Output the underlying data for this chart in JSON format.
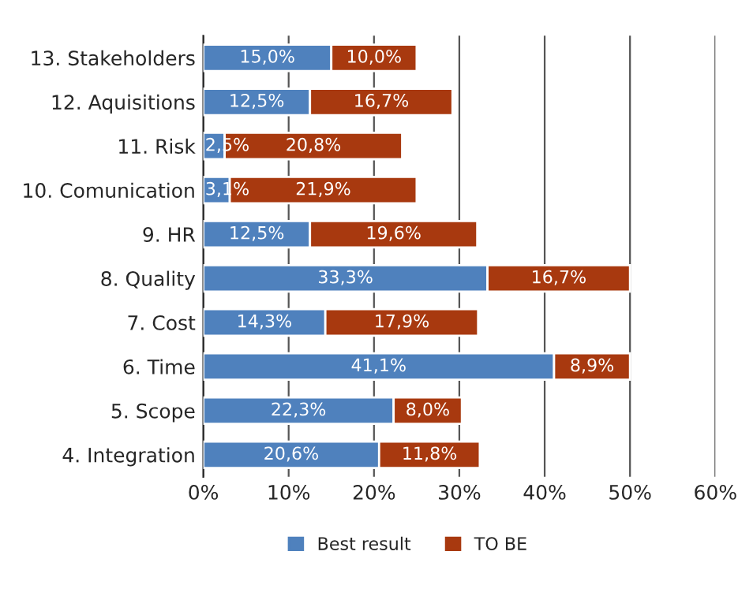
{
  "chart_data": {
    "type": "bar",
    "orientation": "horizontal",
    "stacked": true,
    "categories": [
      "13. Stakeholders",
      "12. Aquisitions",
      "11. Risk",
      "10. Comunication",
      "9. HR",
      "8. Quality",
      "7. Cost",
      "6. Time",
      "5. Scope",
      "4. Integration"
    ],
    "series": [
      {
        "name": "Best result",
        "color": "#4f81bd",
        "values": [
          15.0,
          12.5,
          2.5,
          3.1,
          12.5,
          33.3,
          14.3,
          41.1,
          22.3,
          20.6
        ],
        "value_labels": [
          "15,0%",
          "12,5%",
          "2,5%",
          "3,1%",
          "12,5%",
          "33,3%",
          "14,3%",
          "41,1%",
          "22,3%",
          "20,6%"
        ]
      },
      {
        "name": "TO BE",
        "color": "#a8390f",
        "values": [
          10.0,
          16.7,
          20.8,
          21.9,
          19.6,
          16.7,
          17.9,
          8.9,
          8.0,
          11.8
        ],
        "value_labels": [
          "10,0%",
          "16,7%",
          "20,8%",
          "21,9%",
          "19,6%",
          "16,7%",
          "17,9%",
          "8,9%",
          "8,0%",
          "11,8%"
        ]
      }
    ],
    "xlim": [
      0,
      60
    ],
    "xticks": [
      {
        "value": 0,
        "label": "0%"
      },
      {
        "value": 10,
        "label": "10%"
      },
      {
        "value": 20,
        "label": "20%"
      },
      {
        "value": 30,
        "label": "30%"
      },
      {
        "value": 40,
        "label": "40%"
      },
      {
        "value": 50,
        "label": "50%"
      },
      {
        "value": 60,
        "label": "60%"
      }
    ],
    "grid": "x",
    "legend": "bottom"
  }
}
